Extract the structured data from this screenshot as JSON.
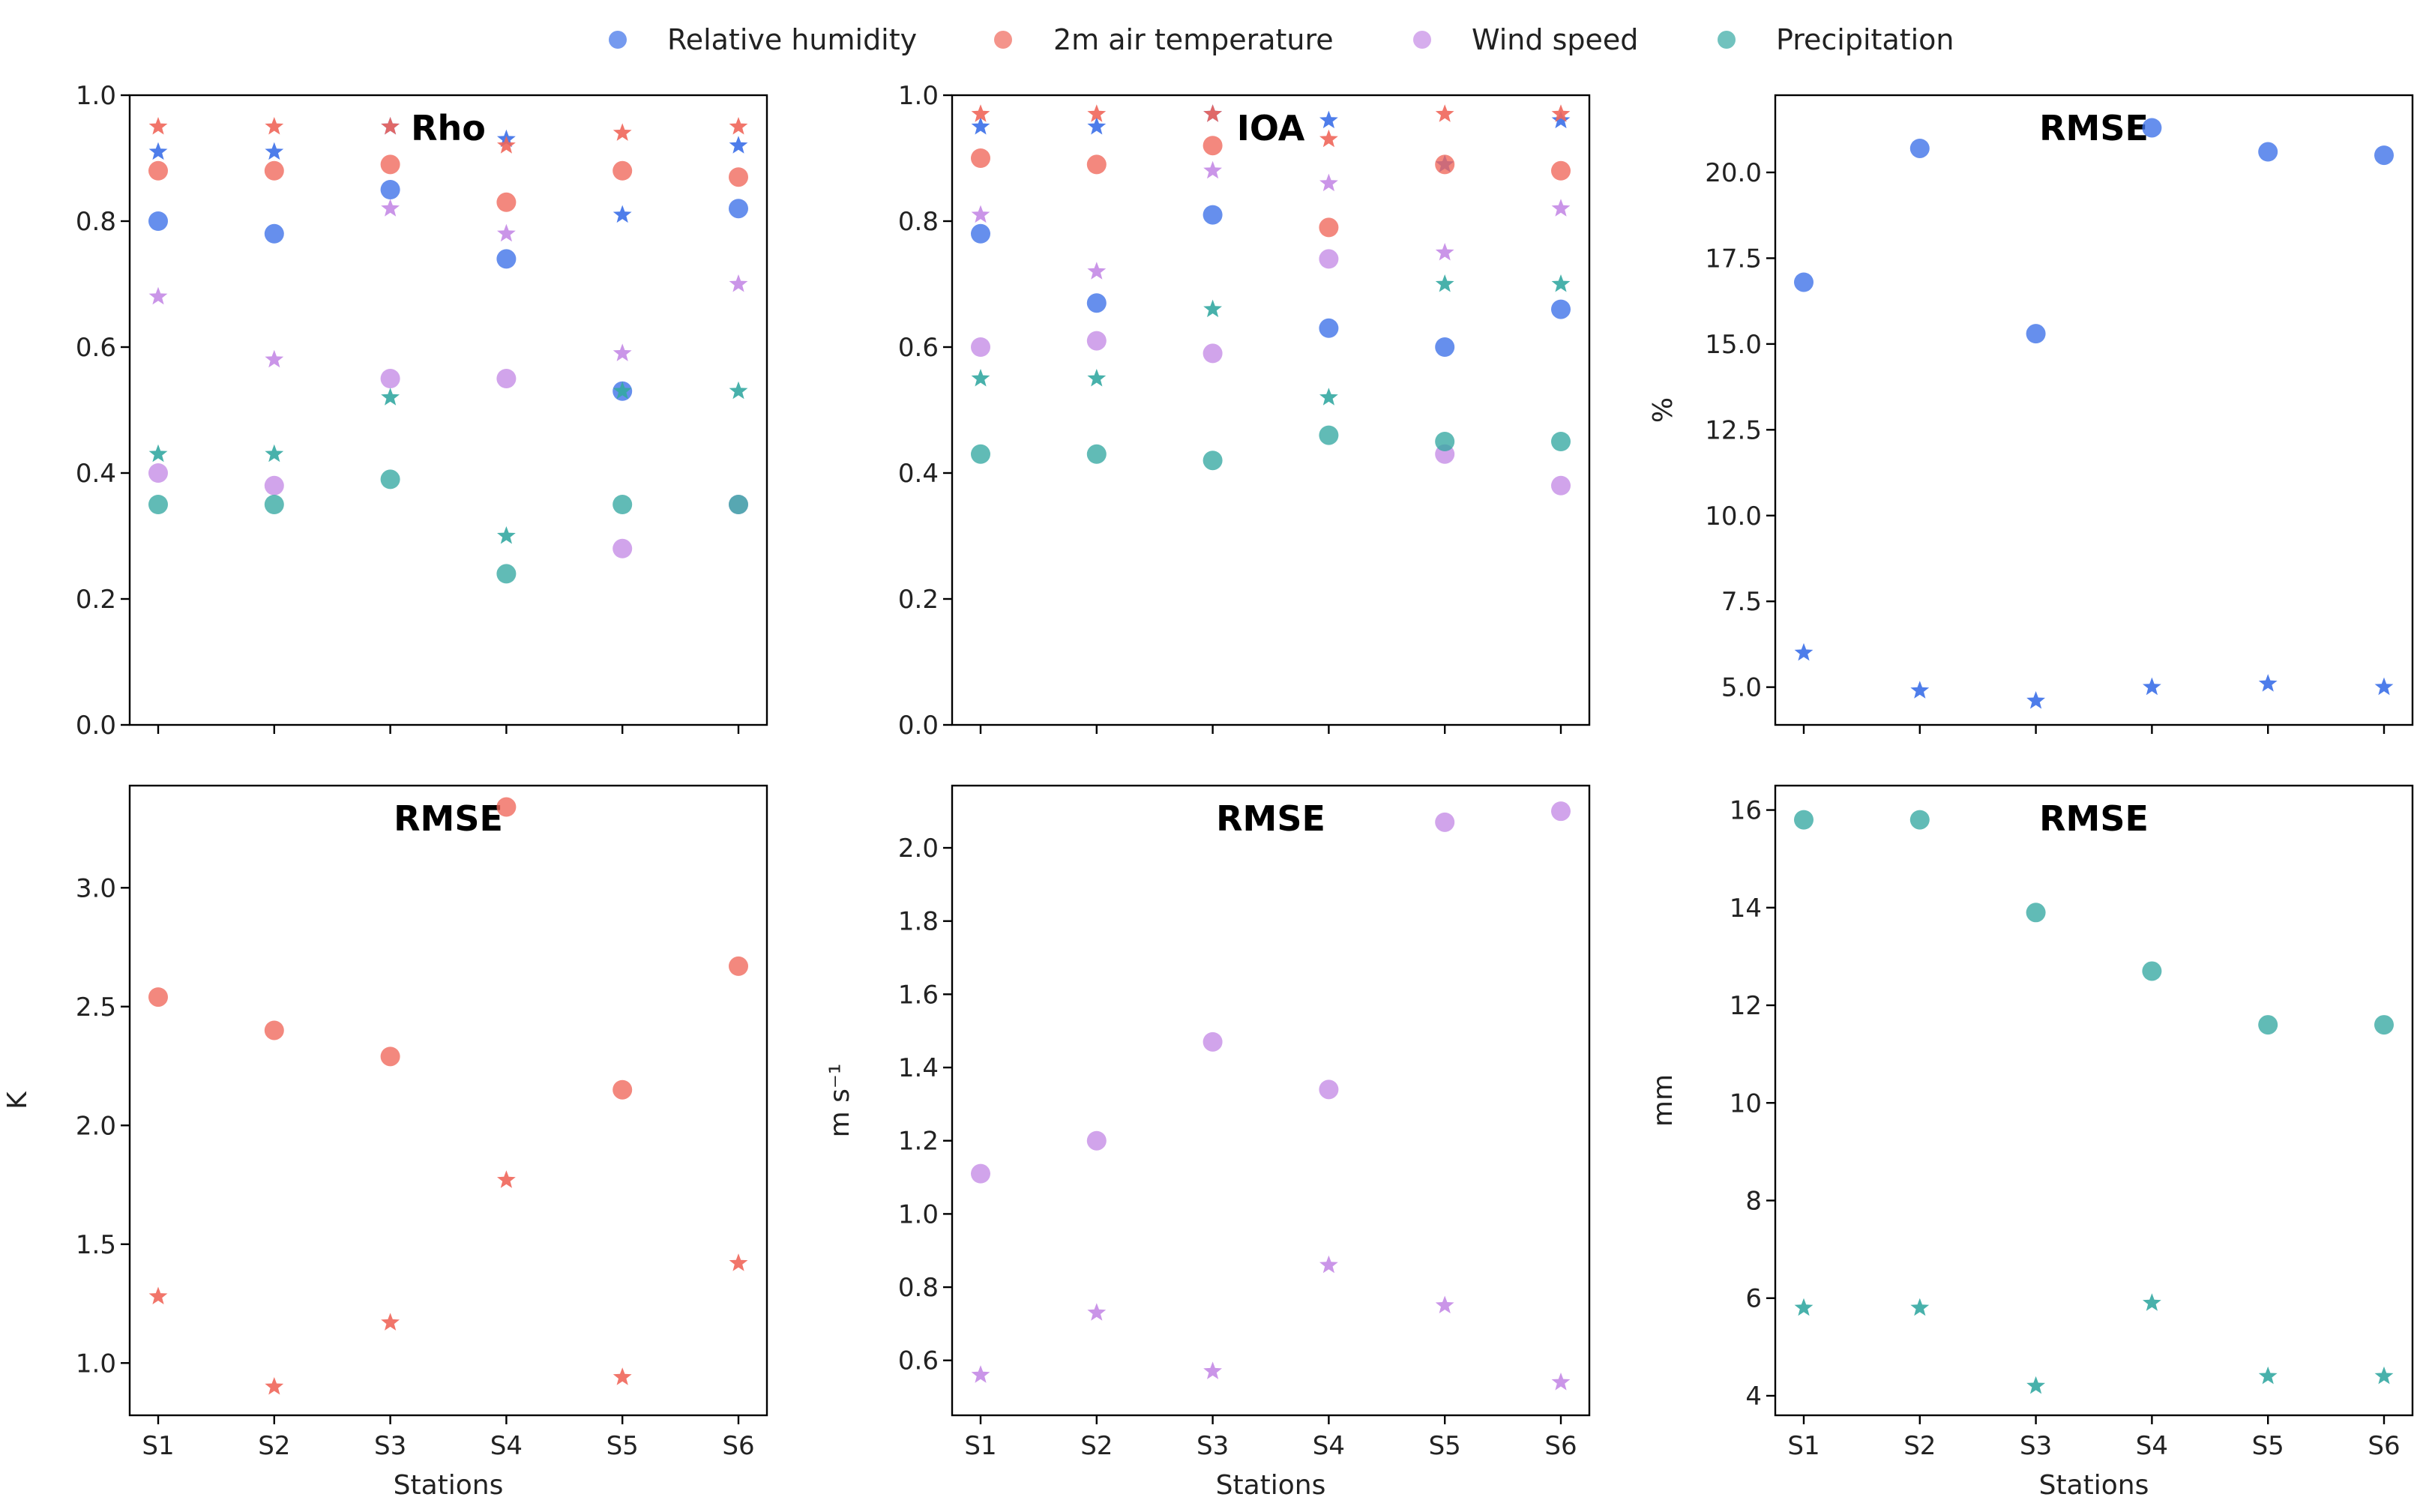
{
  "legend": [
    {
      "key": "rh",
      "label": "Relative humidity"
    },
    {
      "key": "t2m",
      "label": "2m air temperature"
    },
    {
      "key": "ws",
      "label": "Wind speed"
    },
    {
      "key": "pr",
      "label": "Precipitation"
    }
  ],
  "colors": {
    "rh": "#3b6fe8",
    "t2m": "#f0665a",
    "ws": "#c48ae6",
    "pr": "#34a8a2"
  },
  "markers": {
    "circle": "circle",
    "star": "star-icon"
  },
  "chart_data": [
    {
      "id": "rho",
      "type": "scatter",
      "title": "Rho",
      "xlabel": "",
      "ylabel": "",
      "categories": [
        "S1",
        "S2",
        "S3",
        "S4",
        "S5",
        "S6"
      ],
      "ylim": [
        0.0,
        1.0
      ],
      "yticks": [
        "0.0",
        "0.2",
        "0.4",
        "0.6",
        "0.8",
        "1.0"
      ],
      "show_x_ticklabels": false,
      "series": [
        {
          "name": "Relative humidity",
          "color_key": "rh",
          "marker": "circle",
          "values": [
            0.8,
            0.78,
            0.85,
            0.74,
            0.53,
            0.82
          ]
        },
        {
          "name": "Relative humidity",
          "color_key": "rh",
          "marker": "star",
          "values": [
            0.91,
            0.91,
            0.95,
            0.93,
            0.81,
            0.92
          ]
        },
        {
          "name": "2m air temperature",
          "color_key": "t2m",
          "marker": "circle",
          "values": [
            0.88,
            0.88,
            0.89,
            0.83,
            0.88,
            0.87
          ]
        },
        {
          "name": "2m air temperature",
          "color_key": "t2m",
          "marker": "star",
          "values": [
            0.95,
            0.95,
            0.95,
            0.92,
            0.94,
            0.95
          ]
        },
        {
          "name": "Wind speed",
          "color_key": "ws",
          "marker": "circle",
          "values": [
            0.4,
            0.38,
            0.55,
            0.55,
            0.28,
            0.35
          ]
        },
        {
          "name": "Wind speed",
          "color_key": "ws",
          "marker": "star",
          "values": [
            0.68,
            0.58,
            0.82,
            0.78,
            0.59,
            0.7
          ]
        },
        {
          "name": "Precipitation",
          "color_key": "pr",
          "marker": "circle",
          "values": [
            0.35,
            0.35,
            0.39,
            0.24,
            0.35,
            0.35
          ]
        },
        {
          "name": "Precipitation",
          "color_key": "pr",
          "marker": "star",
          "values": [
            0.43,
            0.43,
            0.52,
            0.3,
            0.53,
            0.53
          ]
        }
      ]
    },
    {
      "id": "ioa",
      "type": "scatter",
      "title": "IOA",
      "xlabel": "",
      "ylabel": "",
      "categories": [
        "S1",
        "S2",
        "S3",
        "S4",
        "S5",
        "S6"
      ],
      "ylim": [
        0.0,
        1.0
      ],
      "yticks": [
        "0.0",
        "0.2",
        "0.4",
        "0.6",
        "0.8",
        "1.0"
      ],
      "show_x_ticklabels": false,
      "series": [
        {
          "name": "Relative humidity",
          "color_key": "rh",
          "marker": "circle",
          "values": [
            0.78,
            0.67,
            0.81,
            0.63,
            0.6,
            0.66
          ]
        },
        {
          "name": "Relative humidity",
          "color_key": "rh",
          "marker": "star",
          "values": [
            0.95,
            0.95,
            0.97,
            0.96,
            0.89,
            0.96
          ]
        },
        {
          "name": "2m air temperature",
          "color_key": "t2m",
          "marker": "circle",
          "values": [
            0.9,
            0.89,
            0.92,
            0.79,
            0.89,
            0.88
          ]
        },
        {
          "name": "2m air temperature",
          "color_key": "t2m",
          "marker": "star",
          "values": [
            0.97,
            0.97,
            0.97,
            0.93,
            0.97,
            0.97
          ]
        },
        {
          "name": "Wind speed",
          "color_key": "ws",
          "marker": "circle",
          "values": [
            0.6,
            0.61,
            0.59,
            0.74,
            0.43,
            0.38
          ]
        },
        {
          "name": "Wind speed",
          "color_key": "ws",
          "marker": "star",
          "values": [
            0.81,
            0.72,
            0.88,
            0.86,
            0.75,
            0.82
          ]
        },
        {
          "name": "Precipitation",
          "color_key": "pr",
          "marker": "circle",
          "values": [
            0.43,
            0.43,
            0.42,
            0.46,
            0.45,
            0.45
          ]
        },
        {
          "name": "Precipitation",
          "color_key": "pr",
          "marker": "star",
          "values": [
            0.55,
            0.55,
            0.66,
            0.52,
            0.7,
            0.7
          ]
        }
      ]
    },
    {
      "id": "rmse-rh",
      "type": "scatter",
      "title": "RMSE",
      "xlabel": "",
      "ylabel": "%",
      "categories": [
        "S1",
        "S2",
        "S3",
        "S4",
        "S5",
        "S6"
      ],
      "ylim": [
        3.9,
        22.25
      ],
      "yticks": [
        "5.0",
        "7.5",
        "10.0",
        "12.5",
        "15.0",
        "17.5",
        "20.0"
      ],
      "show_x_ticklabels": false,
      "series": [
        {
          "name": "Relative humidity",
          "color_key": "rh",
          "marker": "circle",
          "values": [
            16.8,
            20.7,
            15.3,
            21.3,
            20.6,
            20.5
          ]
        },
        {
          "name": "Relative humidity",
          "color_key": "rh",
          "marker": "star",
          "values": [
            6.0,
            4.9,
            4.6,
            5.0,
            5.1,
            5.0
          ]
        }
      ]
    },
    {
      "id": "rmse-t2m",
      "type": "scatter",
      "title": "RMSE",
      "xlabel": "",
      "ylabel": "K",
      "categories": [
        "S1",
        "S2",
        "S3",
        "S4",
        "S5",
        "S6"
      ],
      "ylim": [
        0.78,
        3.43
      ],
      "yticks": [
        "1.0",
        "1.5",
        "2.0",
        "2.5",
        "3.0"
      ],
      "show_x_ticklabels": true,
      "series": [
        {
          "name": "2m air temperature",
          "color_key": "t2m",
          "marker": "circle",
          "values": [
            2.54,
            2.4,
            2.29,
            3.34,
            2.15,
            2.67
          ]
        },
        {
          "name": "2m air temperature",
          "color_key": "t2m",
          "marker": "star",
          "values": [
            1.28,
            0.9,
            1.17,
            1.77,
            0.94,
            1.42
          ]
        }
      ]
    },
    {
      "id": "rmse-ws",
      "type": "scatter",
      "title": "RMSE",
      "xlabel": "Stations",
      "ylabel": "m s⁻¹",
      "categories": [
        "S1",
        "S2",
        "S3",
        "S4",
        "S5",
        "S6"
      ],
      "ylim": [
        0.45,
        2.17
      ],
      "yticks": [
        "0.6",
        "0.8",
        "1.0",
        "1.2",
        "1.4",
        "1.6",
        "1.8",
        "2.0"
      ],
      "show_x_ticklabels": true,
      "series": [
        {
          "name": "Wind speed",
          "color_key": "ws",
          "marker": "circle",
          "values": [
            1.11,
            1.2,
            1.47,
            1.34,
            2.07,
            2.1
          ]
        },
        {
          "name": "Wind speed",
          "color_key": "ws",
          "marker": "star",
          "values": [
            0.56,
            0.73,
            0.57,
            0.86,
            0.75,
            0.54
          ]
        }
      ]
    },
    {
      "id": "rmse-pr",
      "type": "scatter",
      "title": "RMSE",
      "xlabel": "Stations",
      "ylabel": "mm",
      "categories": [
        "S1",
        "S2",
        "S3",
        "S4",
        "S5",
        "S6"
      ],
      "ylim": [
        3.6,
        16.5
      ],
      "yticks": [
        "4",
        "6",
        "8",
        "10",
        "12",
        "14",
        "16"
      ],
      "show_x_ticklabels": true,
      "series": [
        {
          "name": "Precipitation",
          "color_key": "pr",
          "marker": "circle",
          "values": [
            15.8,
            15.8,
            13.9,
            12.7,
            11.6,
            11.6
          ]
        },
        {
          "name": "Precipitation",
          "color_key": "pr",
          "marker": "star",
          "values": [
            5.8,
            5.8,
            4.2,
            5.9,
            4.4,
            4.4
          ]
        }
      ]
    }
  ],
  "bottom_left_xlabel": "Stations"
}
